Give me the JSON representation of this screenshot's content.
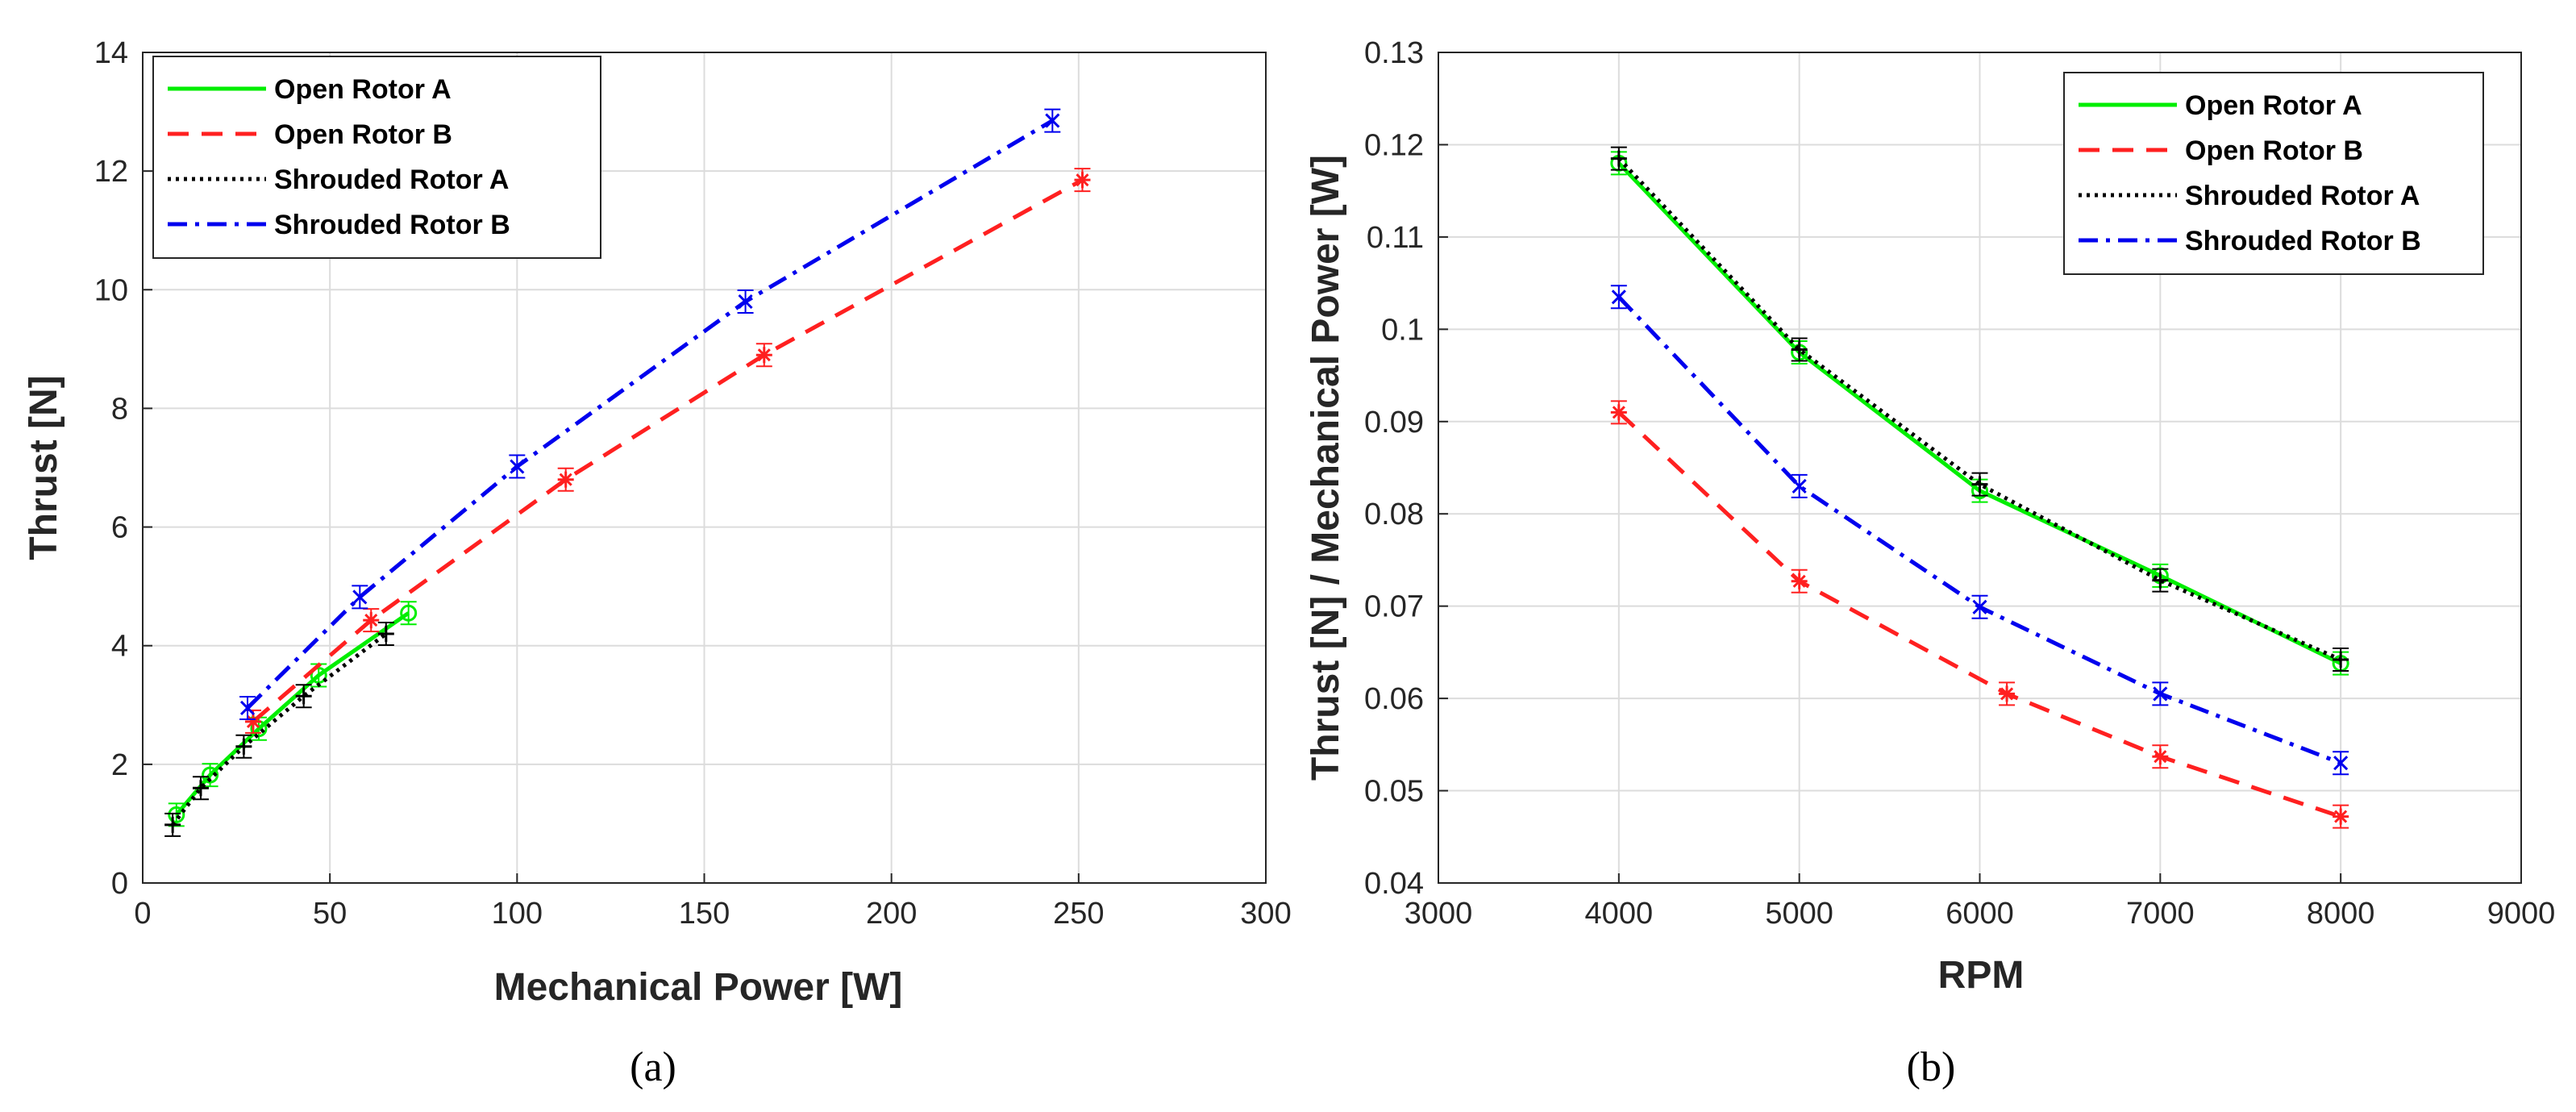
{
  "chart_data": [
    {
      "type": "line",
      "panel_label": "(a)",
      "xlabel": "Mechanical Power [W]",
      "ylabel": "Thrust [N]",
      "xlim": [
        0,
        300
      ],
      "ylim": [
        0,
        14
      ],
      "xticks": [
        0,
        50,
        100,
        150,
        200,
        250,
        300
      ],
      "yticks": [
        0,
        2,
        4,
        6,
        8,
        10,
        12,
        14
      ],
      "grid": true,
      "legend_position": "top-left",
      "series": [
        {
          "name": "Open Rotor A",
          "color": "#00ee00",
          "style": "solid",
          "marker": "o",
          "x": [
            9,
            18,
            31,
            47,
            71
          ],
          "y": [
            1.15,
            1.82,
            2.6,
            3.5,
            4.55
          ]
        },
        {
          "name": "Open Rotor B",
          "color": "#ff2020",
          "style": "dashed",
          "marker": "*",
          "x": [
            29.5,
            61,
            113,
            166,
            251
          ],
          "y": [
            2.72,
            4.43,
            6.8,
            8.9,
            11.85
          ]
        },
        {
          "name": "Shrouded Rotor A",
          "color": "#000000",
          "style": "dotted",
          "marker": "+",
          "x": [
            8,
            15.5,
            27,
            43,
            65
          ],
          "y": [
            0.98,
            1.6,
            2.3,
            3.15,
            4.2
          ]
        },
        {
          "name": "Shrouded Rotor B",
          "color": "#0000ee",
          "style": "dashdot",
          "marker": "x",
          "x": [
            28,
            58,
            100,
            161,
            243
          ],
          "y": [
            2.95,
            4.82,
            7.02,
            9.8,
            12.85
          ]
        }
      ]
    },
    {
      "type": "line",
      "panel_label": "(b)",
      "xlabel": "RPM",
      "ylabel": "Thrust [N] / Mechanical Power [W]",
      "xlim": [
        3000,
        9000
      ],
      "ylim": [
        0.04,
        0.13
      ],
      "xticks": [
        3000,
        4000,
        5000,
        6000,
        7000,
        8000,
        9000
      ],
      "yticks": [
        0.04,
        0.05,
        0.06,
        0.07,
        0.08,
        0.09,
        0.1,
        0.11,
        0.12,
        0.13
      ],
      "grid": true,
      "legend_position": "top-right",
      "series": [
        {
          "name": "Open Rotor A",
          "color": "#00ee00",
          "style": "solid",
          "marker": "o",
          "x": [
            4000,
            5000,
            6000,
            7000,
            8000
          ],
          "y": [
            0.118,
            0.0975,
            0.0825,
            0.0733,
            0.0638
          ]
        },
        {
          "name": "Open Rotor B",
          "color": "#ff2020",
          "style": "dashed",
          "marker": "*",
          "x": [
            4000,
            5000,
            6150,
            7000,
            8000
          ],
          "y": [
            0.091,
            0.0727,
            0.0605,
            0.0537,
            0.0472
          ]
        },
        {
          "name": "Shrouded Rotor A",
          "color": "#000000",
          "style": "dotted",
          "marker": "+",
          "x": [
            4000,
            5000,
            6000,
            7000,
            8000
          ],
          "y": [
            0.1185,
            0.0978,
            0.0832,
            0.0728,
            0.0642
          ]
        },
        {
          "name": "Shrouded Rotor B",
          "color": "#0000ee",
          "style": "dashdot",
          "marker": "x",
          "x": [
            4000,
            5000,
            6000,
            7000,
            8000
          ],
          "y": [
            0.1035,
            0.083,
            0.0699,
            0.0605,
            0.053
          ]
        }
      ]
    }
  ]
}
